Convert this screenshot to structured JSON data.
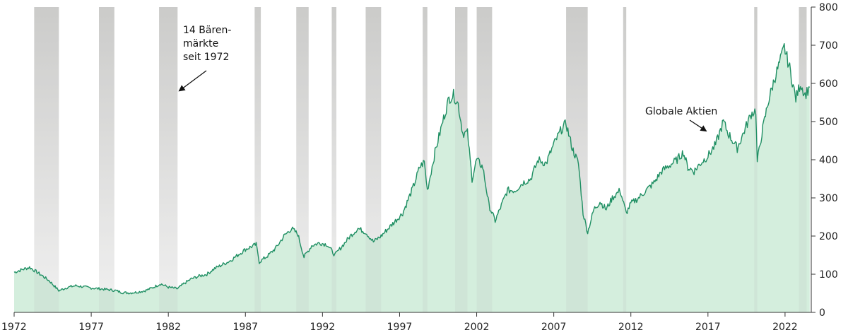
{
  "chart_data": {
    "type": "area",
    "title": "",
    "xlabel": "",
    "ylabel": "",
    "xlim": [
      1972,
      2023.7
    ],
    "ylim": [
      0,
      800
    ],
    "x_ticks": [
      "1972",
      "1977",
      "1982",
      "1987",
      "1992",
      "1997",
      "2002",
      "2007",
      "2012",
      "2017",
      "2022"
    ],
    "y_ticks": [
      "0",
      "100",
      "200",
      "300",
      "400",
      "500",
      "600",
      "700",
      "800"
    ],
    "y_axis_position": "right",
    "grid": false,
    "colors": {
      "line": "#1f8f63",
      "fill": "#d4eedd",
      "bear_band": "#cfcfcd"
    },
    "series": [
      {
        "name": "Globale Aktien",
        "points": [
          [
            1972.0,
            105
          ],
          [
            1972.5,
            112
          ],
          [
            1973.0,
            118
          ],
          [
            1973.3,
            110
          ],
          [
            1973.8,
            97
          ],
          [
            1974.3,
            82
          ],
          [
            1974.9,
            57
          ],
          [
            1975.5,
            66
          ],
          [
            1976.0,
            70
          ],
          [
            1976.5,
            67
          ],
          [
            1977.0,
            64
          ],
          [
            1977.5,
            62
          ],
          [
            1978.0,
            60
          ],
          [
            1978.6,
            57
          ],
          [
            1979.0,
            52
          ],
          [
            1979.5,
            51
          ],
          [
            1980.0,
            53
          ],
          [
            1980.5,
            57
          ],
          [
            1981.0,
            65
          ],
          [
            1981.5,
            75
          ],
          [
            1982.0,
            66
          ],
          [
            1982.6,
            62
          ],
          [
            1983.0,
            75
          ],
          [
            1983.5,
            88
          ],
          [
            1984.0,
            95
          ],
          [
            1984.5,
            100
          ],
          [
            1985.0,
            115
          ],
          [
            1985.5,
            125
          ],
          [
            1986.0,
            135
          ],
          [
            1986.5,
            150
          ],
          [
            1987.0,
            165
          ],
          [
            1987.7,
            178
          ],
          [
            1987.9,
            132
          ],
          [
            1988.5,
            150
          ],
          [
            1989.0,
            170
          ],
          [
            1989.5,
            200
          ],
          [
            1990.0,
            220
          ],
          [
            1990.4,
            205
          ],
          [
            1990.8,
            145
          ],
          [
            1991.3,
            175
          ],
          [
            1991.8,
            182
          ],
          [
            1992.3,
            178
          ],
          [
            1992.8,
            150
          ],
          [
            1993.3,
            175
          ],
          [
            1993.8,
            200
          ],
          [
            1994.3,
            220
          ],
          [
            1994.8,
            210
          ],
          [
            1995.3,
            185
          ],
          [
            1995.8,
            200
          ],
          [
            1996.5,
            230
          ],
          [
            1997.2,
            260
          ],
          [
            1997.6,
            300
          ],
          [
            1997.9,
            330
          ],
          [
            1998.3,
            380
          ],
          [
            1998.6,
            395
          ],
          [
            1998.8,
            320
          ],
          [
            1999.3,
            420
          ],
          [
            1999.8,
            500
          ],
          [
            2000.2,
            560
          ],
          [
            2000.5,
            570
          ],
          [
            2000.8,
            545
          ],
          [
            2001.1,
            470
          ],
          [
            2001.4,
            470
          ],
          [
            2001.7,
            350
          ],
          [
            2002.0,
            400
          ],
          [
            2002.4,
            380
          ],
          [
            2002.8,
            280
          ],
          [
            2003.2,
            240
          ],
          [
            2003.6,
            280
          ],
          [
            2004.0,
            320
          ],
          [
            2004.5,
            320
          ],
          [
            2005.0,
            340
          ],
          [
            2005.5,
            350
          ],
          [
            2006.0,
            400
          ],
          [
            2006.5,
            390
          ],
          [
            2007.0,
            440
          ],
          [
            2007.5,
            480
          ],
          [
            2007.8,
            495
          ],
          [
            2008.2,
            430
          ],
          [
            2008.6,
            390
          ],
          [
            2008.9,
            260
          ],
          [
            2009.2,
            210
          ],
          [
            2009.6,
            270
          ],
          [
            2010.0,
            290
          ],
          [
            2010.4,
            270
          ],
          [
            2010.8,
            300
          ],
          [
            2011.3,
            320
          ],
          [
            2011.7,
            260
          ],
          [
            2012.0,
            285
          ],
          [
            2012.5,
            300
          ],
          [
            2013.0,
            320
          ],
          [
            2013.5,
            340
          ],
          [
            2014.0,
            370
          ],
          [
            2014.5,
            385
          ],
          [
            2015.0,
            400
          ],
          [
            2015.4,
            420
          ],
          [
            2015.7,
            380
          ],
          [
            2016.1,
            370
          ],
          [
            2016.5,
            390
          ],
          [
            2017.0,
            410
          ],
          [
            2017.5,
            440
          ],
          [
            2018.0,
            500
          ],
          [
            2018.3,
            470
          ],
          [
            2018.9,
            430
          ],
          [
            2019.3,
            470
          ],
          [
            2019.8,
            520
          ],
          [
            2020.1,
            530
          ],
          [
            2020.2,
            395
          ],
          [
            2020.5,
            470
          ],
          [
            2020.9,
            550
          ],
          [
            2021.3,
            610
          ],
          [
            2021.7,
            660
          ],
          [
            2021.95,
            695
          ],
          [
            2022.3,
            640
          ],
          [
            2022.7,
            560
          ],
          [
            2023.0,
            600
          ],
          [
            2023.3,
            570
          ],
          [
            2023.6,
            590
          ]
        ]
      }
    ],
    "bear_markets": [
      [
        1973.3,
        1974.9
      ],
      [
        1977.5,
        1978.5
      ],
      [
        1981.4,
        1982.6
      ],
      [
        1987.6,
        1988.0
      ],
      [
        1990.3,
        1991.1
      ],
      [
        1992.6,
        1992.9
      ],
      [
        1994.8,
        1995.8
      ],
      [
        1998.5,
        1998.8
      ],
      [
        2000.6,
        2001.4
      ],
      [
        2002.0,
        2003.0
      ],
      [
        2007.8,
        2009.2
      ],
      [
        2011.5,
        2011.7
      ],
      [
        2020.0,
        2020.2
      ],
      [
        2022.9,
        2023.4
      ]
    ],
    "annotations": [
      {
        "text_lines": [
          "14 Bären-",
          "märkte",
          "seit 1972"
        ],
        "target": [
          1982.6,
          580
        ]
      },
      {
        "text_lines": [
          "Globale Aktien"
        ],
        "target": [
          2016.9,
          460
        ]
      }
    ]
  }
}
